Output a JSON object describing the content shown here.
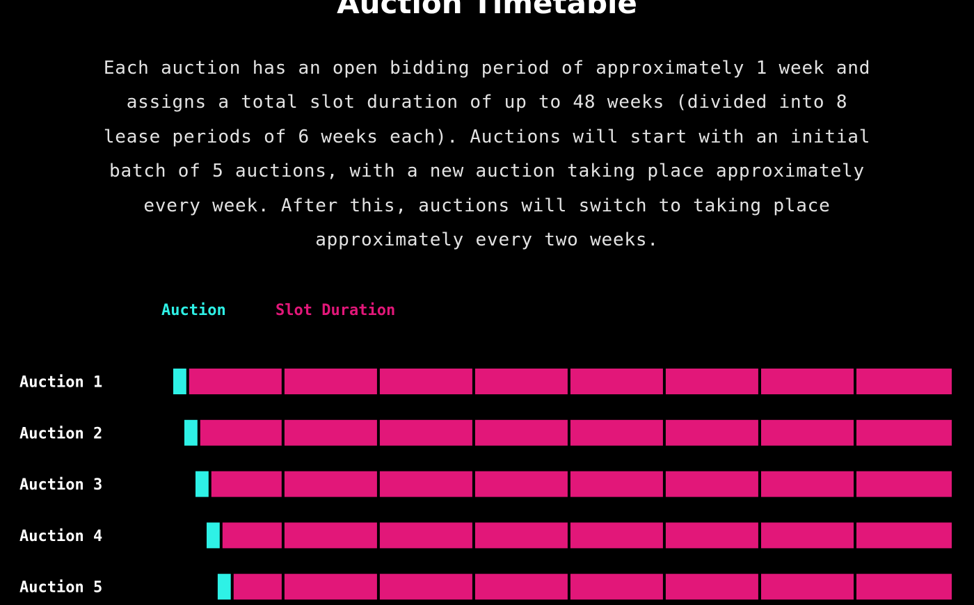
{
  "page": {
    "title": "Auction Timetable",
    "description": "Each auction has an open bidding period of approximately 1 week and assigns a total slot duration of up to 48 weeks (divided into 8 lease periods of 6 weeks each). Auctions will start with an initial batch of 5 auctions, with a new auction taking place approximately every week. After this, auctions will switch to taking place approximately every two weeks."
  },
  "colors": {
    "background": "#000000",
    "auction": "#2ef1e6",
    "slot": "#e21779",
    "text": "#ffffff"
  },
  "chart_data": {
    "type": "bar",
    "orientation": "horizontal",
    "stacked": true,
    "title": "",
    "legend": {
      "placement": "top-left",
      "entries": [
        {
          "name": "Auction",
          "color": "#2ef1e6"
        },
        {
          "name": "Slot Duration",
          "color": "#e21779"
        }
      ]
    },
    "xlabel": "",
    "ylabel": "",
    "x_unit": "weeks",
    "categories": [
      "Auction 1",
      "Auction 2",
      "Auction 3",
      "Auction 4",
      "Auction 5"
    ],
    "lease_period_boundaries_weeks": [
      7,
      13,
      19,
      25,
      31,
      37,
      43
    ],
    "xlim": [
      0,
      49
    ],
    "rows": [
      {
        "label": "Auction 1",
        "auction_start": 0,
        "auction_weeks": 1,
        "slot_start": 1,
        "slot_end": 49
      },
      {
        "label": "Auction 2",
        "auction_start": 0.7,
        "auction_weeks": 1,
        "slot_start": 1.7,
        "slot_end": 49
      },
      {
        "label": "Auction 3",
        "auction_start": 1.4,
        "auction_weeks": 1,
        "slot_start": 2.4,
        "slot_end": 49
      },
      {
        "label": "Auction 4",
        "auction_start": 2.1,
        "auction_weeks": 1,
        "slot_start": 3.1,
        "slot_end": 49
      },
      {
        "label": "Auction 5",
        "auction_start": 2.8,
        "auction_weeks": 1,
        "slot_start": 3.8,
        "slot_end": 49
      }
    ],
    "grid": false
  }
}
